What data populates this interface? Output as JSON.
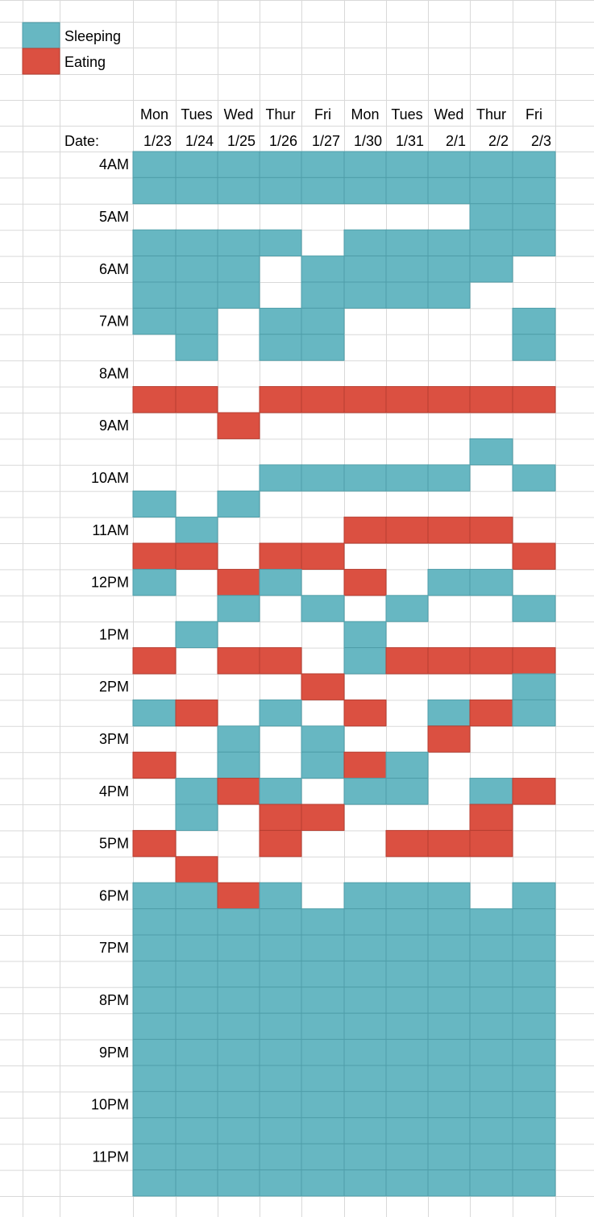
{
  "legend": {
    "items": [
      {
        "label": "Sleeping",
        "code": "S",
        "color": "#67B7C2"
      },
      {
        "label": "Eating",
        "code": "E",
        "color": "#DB5041"
      }
    ]
  },
  "chart_data": {
    "type": "heatmap",
    "legend_position": "top-left",
    "date_label": "Date:",
    "days": [
      "Mon",
      "Tues",
      "Wed",
      "Thur",
      "Fri",
      "Mon",
      "Tues",
      "Wed",
      "Thur",
      "Fri"
    ],
    "dates": [
      "1/23",
      "1/24",
      "1/25",
      "1/26",
      "1/27",
      "1/30",
      "1/31",
      "2/1",
      "2/2",
      "2/3"
    ],
    "time_labels": [
      "4AM",
      "5AM",
      "6AM",
      "7AM",
      "8AM",
      "9AM",
      "10AM",
      "11AM",
      "12PM",
      "1PM",
      "2PM",
      "3PM",
      "4PM",
      "5PM",
      "6PM",
      "7PM",
      "8PM",
      "9PM",
      "10PM",
      "11PM"
    ],
    "slots_per_hour": 2,
    "grid": [
      "SSSSSSSSSS",
      "SSSSSSSSSS",
      "--------SS",
      "SSSS-SSSSS",
      "SSS-SSSSS-",
      "SSS-SSSS--",
      "SS-SS----S",
      "-S-SS----S",
      "----------",
      "EE-EEEEEEE",
      "--E-------",
      "--------S-",
      "---SSSSS-S",
      "S-S-------",
      "-S---EEEE-",
      "EE-EE----E",
      "S-ES-E-SS-",
      "--S-S-S--S",
      "-S---S----",
      "E-EE-SEEEE",
      "----E----S",
      "SE-S-E-SES",
      "--S-S--E--",
      "E-S-SES---",
      "-SES-SS-SE",
      "-S-EE---E-",
      "E--E--EEE-",
      "-E--------",
      "SSES-SSS-S",
      "SSSSSSSSSS",
      "SSSSSSSSSS",
      "SSSSSSSSSS",
      "SSSSSSSSSS",
      "SSSSSSSSSS",
      "SSSSSSSSSS",
      "SSSSSSSSSS",
      "SSSSSSSSSS",
      "SSSSSSSSSS",
      "SSSSSSSSSS",
      "SSSSSSSSSS"
    ]
  }
}
